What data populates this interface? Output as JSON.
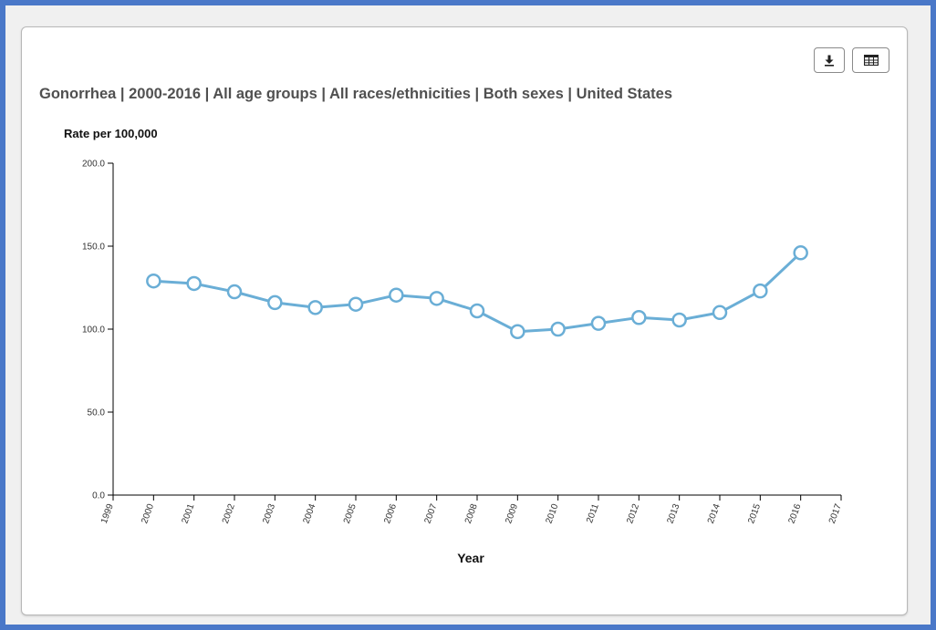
{
  "toolbar": {
    "download_icon": "download-icon",
    "table_icon": "table-icon"
  },
  "chart_data": {
    "type": "line",
    "title": "Gonorrhea | 2000-2016 | All age groups | All races/ethnicities | Both sexes | United States",
    "ylabel": "Rate per 100,000",
    "xlabel": "Year",
    "xlim": [
      1999,
      2017
    ],
    "ylim": [
      0,
      200
    ],
    "x_ticks": [
      "1999",
      "2000",
      "2001",
      "2002",
      "2003",
      "2004",
      "2005",
      "2006",
      "2007",
      "2008",
      "2009",
      "2010",
      "2011",
      "2012",
      "2013",
      "2014",
      "2015",
      "2016",
      "2017"
    ],
    "y_ticks": [
      "0.0",
      "50.0",
      "100.0",
      "150.0",
      "200.0"
    ],
    "grid": false,
    "series": [
      {
        "color": "#6aaed6",
        "x": [
          2000,
          2001,
          2002,
          2003,
          2004,
          2005,
          2006,
          2007,
          2008,
          2009,
          2010,
          2011,
          2012,
          2013,
          2014,
          2015,
          2016
        ],
        "y": [
          129.0,
          127.5,
          122.5,
          116.0,
          113.0,
          115.0,
          120.5,
          118.5,
          111.0,
          98.5,
          100.0,
          103.5,
          107.0,
          105.5,
          110.0,
          123.0,
          146.0
        ]
      }
    ]
  }
}
